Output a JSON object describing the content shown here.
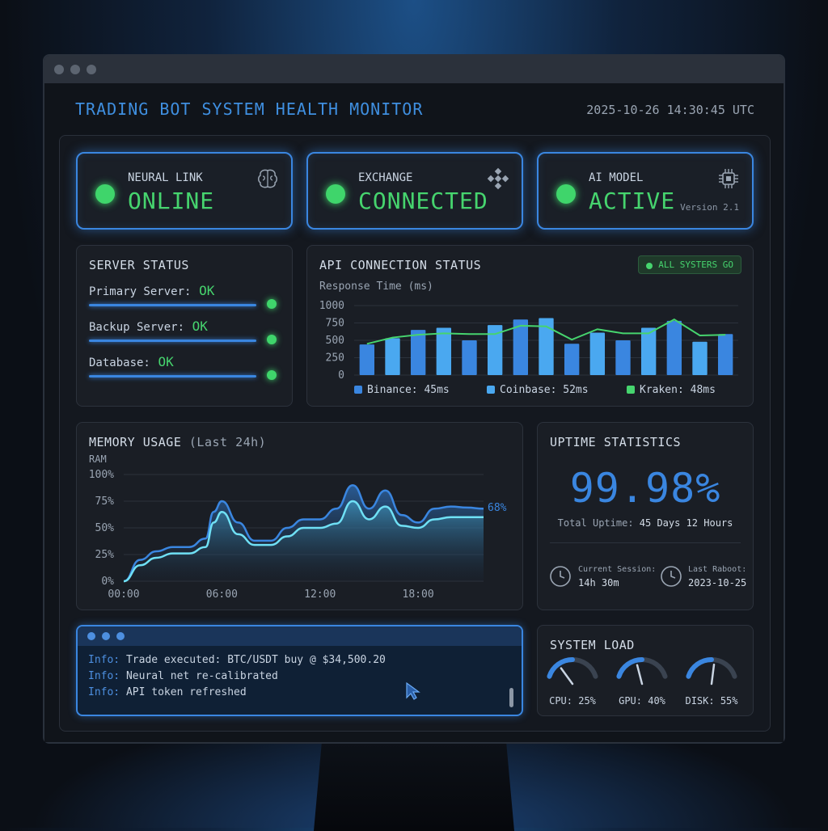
{
  "header": {
    "title": "TRADING BOT SYSTEM HEALTH MONITOR",
    "timestamp": "2025-10-26 14:30:45 UTC"
  },
  "status_cards": [
    {
      "label": "NEURAL LINK",
      "value": "ONLINE",
      "icon": "brain-icon",
      "sub": ""
    },
    {
      "label": "EXCHANGE",
      "value": "CONNECTED",
      "icon": "exchange-logo-icon",
      "sub": ""
    },
    {
      "label": "AI MODEL",
      "value": "ACTIVE",
      "icon": "chip-icon",
      "sub": "Version 2.1"
    }
  ],
  "server_status": {
    "title": "SERVER STATUS",
    "rows": [
      {
        "label": "Primary Server:",
        "status": "OK"
      },
      {
        "label": "Backup Server:",
        "status": "OK"
      },
      {
        "label": "Database:",
        "status": "OK"
      }
    ]
  },
  "api_status": {
    "title": "API CONNECTION STATUS",
    "badge": "ALL SYSTERS GO",
    "subtitle": "Response Time (ms)",
    "legend": [
      {
        "label": "Binance: 45ms",
        "color": "#3a86e0"
      },
      {
        "label": "Coinbase: 52ms",
        "color": "#4aa8f0"
      },
      {
        "label": "Kraken: 48ms",
        "color": "#46d46e"
      }
    ]
  },
  "memory": {
    "title": "MEMORY USAGE",
    "title_suffix": "(Last 24h)",
    "ylabel": "RAM",
    "current_label": "68%"
  },
  "uptime": {
    "title": "UPTIME STATISTICS",
    "percent": "99.98%",
    "total_label": "Total Uptime:",
    "total_value": "45 Days 12 Hours",
    "session_label": "Current Session:",
    "session_value": "14h 30m",
    "reboot_label": "Last Raboot:",
    "reboot_value": "2023-10-25"
  },
  "terminal": {
    "lines": [
      {
        "level": "Info:",
        "text": "Trade executed: BTC/USDT buy @ $34,500.20"
      },
      {
        "level": "Info:",
        "text": "Neural net re-calibrated"
      },
      {
        "level": "Info:",
        "text": "API token refreshed"
      }
    ]
  },
  "system_load": {
    "title": "SYSTEM LOAD",
    "gauges": [
      {
        "label": "CPU: 25%",
        "value": 25
      },
      {
        "label": "GPU: 40%",
        "value": 40
      },
      {
        "label": "DISK: 55%",
        "value": 55
      }
    ]
  },
  "chart_data": [
    {
      "type": "bar",
      "title": "API CONNECTION STATUS",
      "ylabel": "Response Time (ms)",
      "ylim": [
        0,
        1000
      ],
      "y_ticks": [
        "1000",
        "750",
        "500",
        "250",
        "0"
      ],
      "bars": [
        440,
        530,
        650,
        680,
        500,
        720,
        800,
        820,
        450,
        610,
        500,
        680,
        780,
        480,
        590
      ],
      "line": [
        450,
        540,
        580,
        600,
        590,
        590,
        710,
        700,
        510,
        660,
        600,
        600,
        800,
        570,
        580
      ],
      "series": [
        {
          "name": "Binance: 45ms"
        },
        {
          "name": "Coinbase: 52ms"
        },
        {
          "name": "Kraken: 48ms"
        }
      ]
    },
    {
      "type": "area",
      "title": "MEMORY USAGE",
      "ylabel": "RAM",
      "ylim": [
        0,
        100
      ],
      "y_ticks": [
        "100%",
        "75%",
        "50%",
        "25%",
        "0%"
      ],
      "x_ticks": [
        "00:00",
        "06:00",
        "12:00",
        "18:00"
      ],
      "x_hours": [
        0,
        1,
        2,
        3,
        4,
        5,
        5.5,
        6,
        7,
        8,
        9,
        10,
        11,
        12,
        13,
        14,
        15,
        16,
        17,
        18,
        19,
        20,
        21,
        22
      ],
      "series": [
        {
          "values": [
            0,
            20,
            28,
            32,
            32,
            40,
            65,
            75,
            55,
            38,
            38,
            50,
            58,
            58,
            68,
            90,
            68,
            85,
            62,
            55,
            68,
            70,
            69,
            68
          ]
        },
        {
          "values": [
            0,
            15,
            22,
            26,
            26,
            32,
            55,
            65,
            44,
            34,
            34,
            42,
            50,
            50,
            54,
            75,
            58,
            70,
            52,
            50,
            58,
            60,
            60,
            60
          ]
        }
      ]
    }
  ]
}
